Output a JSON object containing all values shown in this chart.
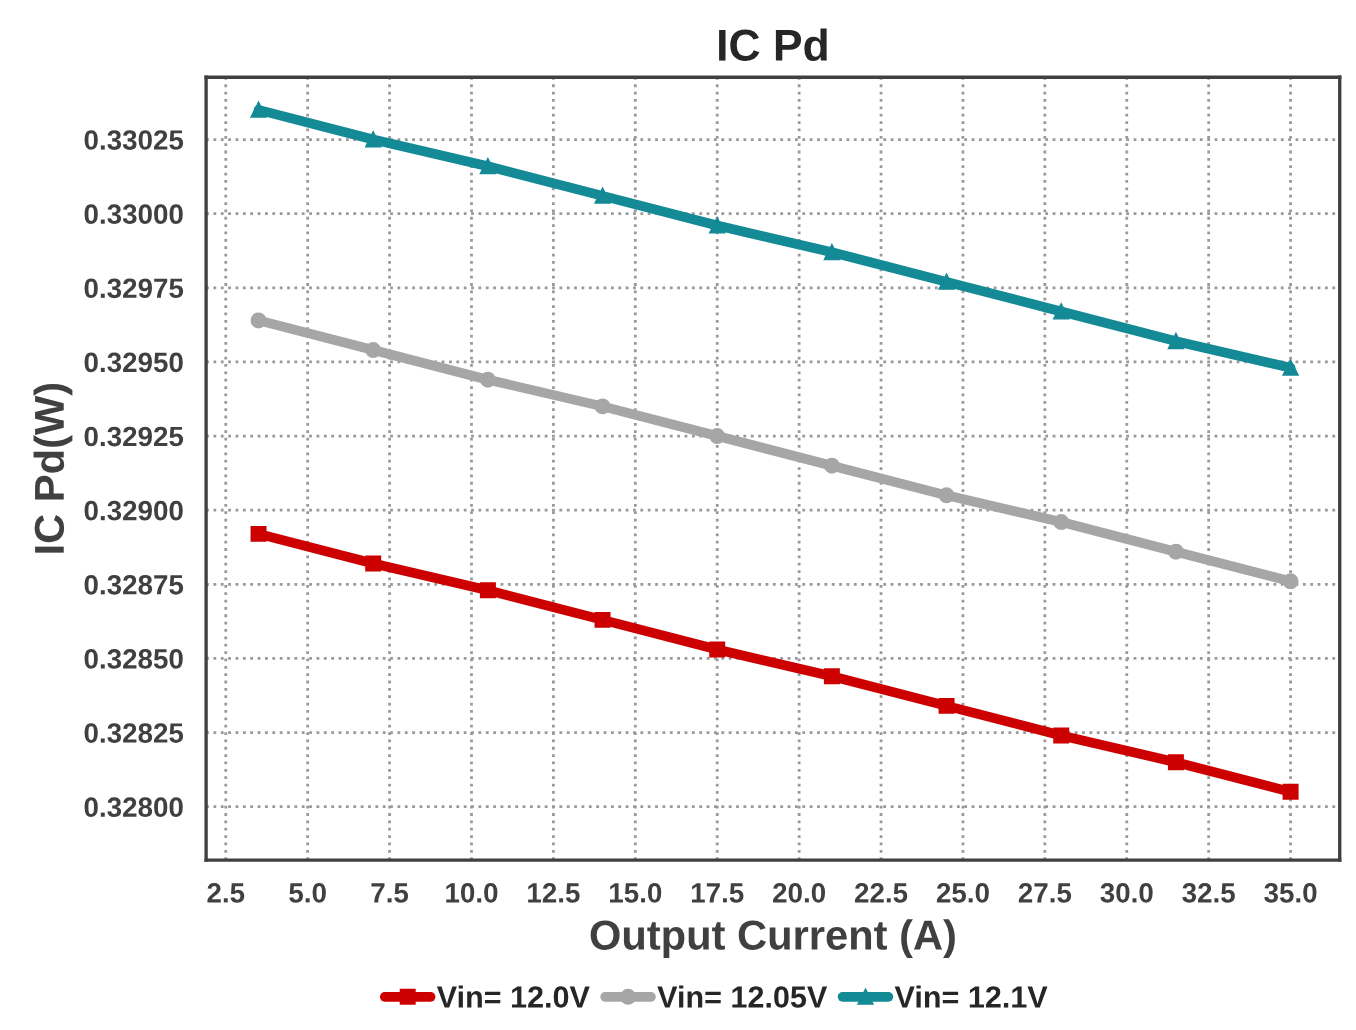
{
  "chart_data": {
    "type": "line",
    "title": "IC Pd",
    "xlabel": "Output Current (A)",
    "ylabel": "IC Pd(W)",
    "x": [
      3.5,
      7,
      10.5,
      14,
      17.5,
      21,
      24.5,
      28,
      31.5,
      35
    ],
    "series": [
      {
        "name": "Vin= 12.0V",
        "color": "#cc0000",
        "marker": "square",
        "values": [
          0.32892,
          0.32882,
          0.32873,
          0.32863,
          0.32853,
          0.32844,
          0.32834,
          0.32824,
          0.32815,
          0.32805
        ]
      },
      {
        "name": "Vin= 12.05V",
        "color": "#a6a6a6",
        "marker": "circle",
        "values": [
          0.32964,
          0.32954,
          0.32944,
          0.32935,
          0.32925,
          0.32915,
          0.32905,
          0.32896,
          0.32886,
          0.32876
        ]
      },
      {
        "name": "Vin= 12.1V",
        "color": "#138a96",
        "marker": "triangle",
        "values": [
          0.33035,
          0.33025,
          0.33016,
          0.33006,
          0.32996,
          0.32987,
          0.32977,
          0.32967,
          0.32957,
          0.32948
        ]
      }
    ],
    "xlim": [
      1.9,
      36.5
    ],
    "xticks": [
      {
        "value": 2.5,
        "label": "2.5"
      },
      {
        "value": 5,
        "label": "5.0"
      },
      {
        "value": 7.5,
        "label": "7.5"
      },
      {
        "value": 10,
        "label": "10.0"
      },
      {
        "value": 12.5,
        "label": "12.5"
      },
      {
        "value": 15,
        "label": "15.0"
      },
      {
        "value": 17.5,
        "label": "17.5"
      },
      {
        "value": 20,
        "label": "20.0"
      },
      {
        "value": 22.5,
        "label": "22.5"
      },
      {
        "value": 25,
        "label": "25.0"
      },
      {
        "value": 27.5,
        "label": "27.5"
      },
      {
        "value": 30,
        "label": "30.0"
      },
      {
        "value": 32.5,
        "label": "32.5"
      },
      {
        "value": 35,
        "label": "35.0"
      }
    ],
    "ylim": [
      0.32782,
      0.33046
    ],
    "yticks": [
      {
        "value": 0.328,
        "label": "0.32800"
      },
      0.32825,
      {
        "value": 0.3285,
        "label": "0.32850"
      },
      0.32875,
      {
        "value": 0.329,
        "label": "0.32900"
      },
      0.32925,
      {
        "value": 0.3295,
        "label": "0.32950"
      },
      0.32975,
      {
        "value": 0.33,
        "label": "0.33000"
      },
      0.33025
    ],
    "grid": true,
    "legend": "bottom",
    "line_style": "solid"
  }
}
